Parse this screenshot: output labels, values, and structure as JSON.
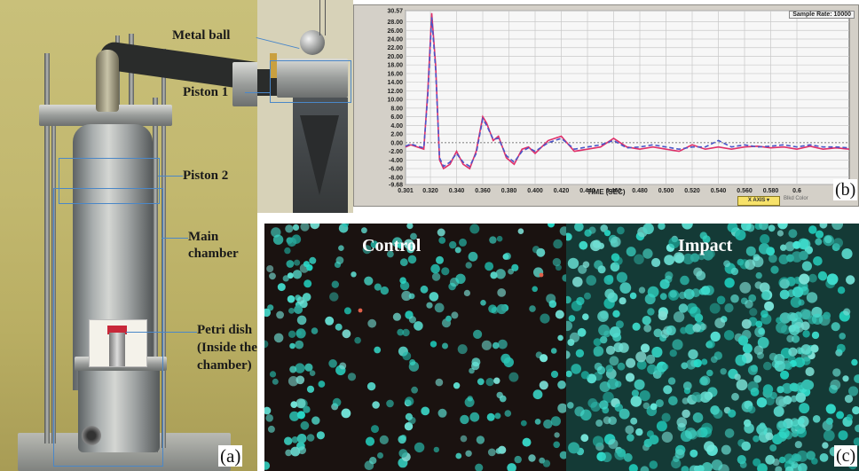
{
  "panel_a": {
    "tag": "(a)",
    "labels": {
      "metal_ball": "Metal ball",
      "piston_1": "Piston 1",
      "piston_2": "Piston 2",
      "main_chamber_line1": "Main",
      "main_chamber_line2": "chamber",
      "petri_line1": "Petri dish",
      "petri_line2": "(Inside the",
      "petri_line3": "chamber)"
    }
  },
  "panel_b": {
    "tag": "(b)",
    "sample_rate": "Sample Rate: 10000",
    "x_axis_button": "X AXIS",
    "blkd_color": "Blkd Color",
    "chart_data": {
      "type": "line",
      "xlabel": "TIME (SEC)",
      "ylabel": "",
      "xlim": [
        0.301,
        0.64
      ],
      "ylim": [
        -9.68,
        30.57
      ],
      "y_ticks": [
        "30.57",
        "28.00",
        "26.00",
        "24.00",
        "22.00",
        "20.00",
        "18.00",
        "16.00",
        "14.00",
        "12.00",
        "10.00",
        "8.00",
        "6.00",
        "4.00",
        "2.00",
        "0.00",
        "-2.00",
        "-4.00",
        "-6.00",
        "-8.00",
        "-9.68"
      ],
      "y_tick_values": [
        30.57,
        28,
        26,
        24,
        22,
        20,
        18,
        16,
        14,
        12,
        10,
        8,
        6,
        4,
        2,
        0,
        -2,
        -4,
        -6,
        -8,
        -9.68
      ],
      "x_ticks": [
        "0.301",
        "0.320",
        "0.340",
        "0.360",
        "0.380",
        "0.400",
        "0.420",
        "0.440",
        "0.460",
        "0.480",
        "0.500",
        "0.520",
        "0.540",
        "0.560",
        "0.580",
        "0.6"
      ],
      "x_tick_values": [
        0.301,
        0.32,
        0.34,
        0.36,
        0.38,
        0.4,
        0.42,
        0.44,
        0.46,
        0.48,
        0.5,
        0.52,
        0.54,
        0.56,
        0.58,
        0.6
      ],
      "grid": true,
      "series": [
        {
          "color": "#e0306a",
          "x": [
            0.301,
            0.305,
            0.31,
            0.315,
            0.318,
            0.321,
            0.324,
            0.327,
            0.33,
            0.335,
            0.34,
            0.345,
            0.35,
            0.355,
            0.36,
            0.363,
            0.368,
            0.372,
            0.378,
            0.384,
            0.39,
            0.395,
            0.4,
            0.41,
            0.42,
            0.43,
            0.44,
            0.45,
            0.46,
            0.47,
            0.48,
            0.49,
            0.5,
            0.51,
            0.52,
            0.53,
            0.54,
            0.55,
            0.56,
            0.57,
            0.58,
            0.59,
            0.6,
            0.61,
            0.62,
            0.63,
            0.64
          ],
          "y": [
            -1,
            -0.5,
            -1,
            -1.5,
            12,
            30,
            18,
            -4,
            -6,
            -5,
            -2,
            -5,
            -6,
            -2,
            6,
            4.5,
            0.5,
            1.5,
            -3.5,
            -5,
            -1.5,
            -1,
            -2.5,
            0.5,
            1.5,
            -2,
            -1.5,
            -1,
            1,
            -1,
            -1.5,
            -1,
            -1.5,
            -2,
            -0.5,
            -1.5,
            -1,
            -1.5,
            -1,
            -0.8,
            -1.2,
            -1,
            -1.5,
            -0.8,
            -1.5,
            -1.2,
            -1.5
          ]
        },
        {
          "color": "#4a56c8",
          "x": [
            0.301,
            0.305,
            0.31,
            0.315,
            0.318,
            0.321,
            0.324,
            0.327,
            0.33,
            0.335,
            0.34,
            0.345,
            0.35,
            0.355,
            0.36,
            0.363,
            0.368,
            0.372,
            0.378,
            0.384,
            0.39,
            0.395,
            0.4,
            0.41,
            0.42,
            0.43,
            0.44,
            0.45,
            0.46,
            0.47,
            0.48,
            0.49,
            0.5,
            0.51,
            0.52,
            0.53,
            0.54,
            0.55,
            0.56,
            0.57,
            0.58,
            0.59,
            0.6,
            0.61,
            0.62,
            0.63,
            0.64
          ],
          "y": [
            -0.8,
            -0.3,
            -0.8,
            -1.2,
            11,
            29,
            17,
            -3.5,
            -5.5,
            -4.5,
            -2.5,
            -4.5,
            -5.5,
            -2.5,
            5.5,
            4,
            0.8,
            1,
            -3,
            -4.5,
            -2,
            -1.2,
            -2,
            0,
            1,
            -1.5,
            -1,
            -0.5,
            0.5,
            -1.2,
            -1,
            -0.5,
            -1,
            -1.5,
            -1,
            -1,
            0.5,
            -1,
            -0.5,
            -1,
            -0.8,
            -0.5,
            -1,
            -0.5,
            -1,
            -1,
            -1.2
          ]
        }
      ]
    }
  },
  "panel_c": {
    "tag": "(c)",
    "left_title": "Control",
    "right_title": "Impact"
  },
  "colors": {
    "annotation_line": "#4a87c8",
    "cell_cyan": "#3fd6c8",
    "chart_bg": "#f5f5f5"
  }
}
